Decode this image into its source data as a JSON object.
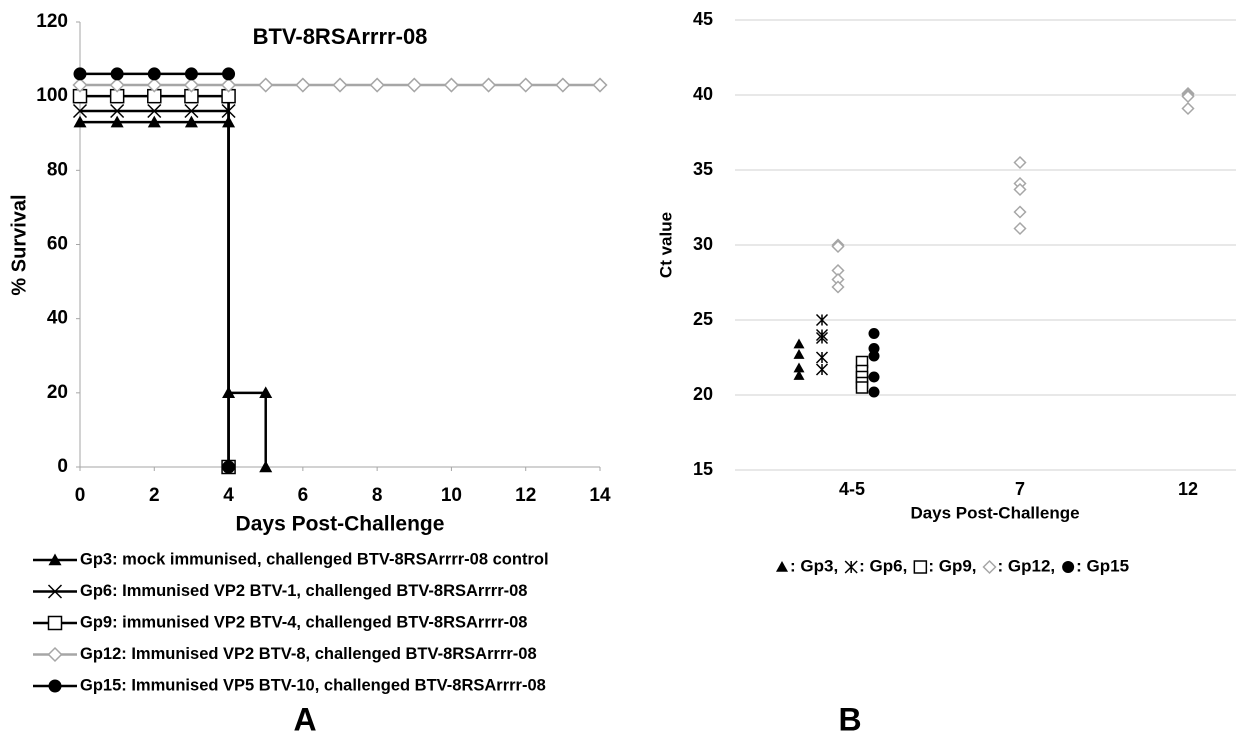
{
  "chart_data": [
    {
      "type": "line",
      "label": "A",
      "title": "BTV-8RSArrrr-08",
      "x_label": "Days Post-Challenge",
      "y_label": "% Survival",
      "xlim": [
        0,
        14
      ],
      "xticks": [
        0,
        2,
        4,
        6,
        8,
        10,
        12,
        14
      ],
      "ylim": [
        0,
        120
      ],
      "yticks": [
        0,
        20,
        40,
        60,
        80,
        100,
        120
      ],
      "grid": false,
      "series": [
        {
          "name": "Gp3: mock immunised, challenged BTV-8RSArrrr-08 control",
          "color": "#000000",
          "marker": "triangle",
          "x": [
            0,
            1,
            2,
            3,
            4,
            4,
            5,
            5
          ],
          "values": [
            93,
            93,
            93,
            93,
            93,
            20,
            20,
            0
          ]
        },
        {
          "name": "Gp6: Immunised VP2 BTV-1, challenged BTV-8RSArrrr-08",
          "color": "#000000",
          "marker": "x",
          "x": [
            0,
            1,
            2,
            3,
            4,
            4
          ],
          "values": [
            96,
            96,
            96,
            96,
            96,
            0
          ]
        },
        {
          "name": "Gp9: immunised VP2 BTV-4, challenged BTV-8RSArrrr-08",
          "color": "#000000",
          "marker": "square",
          "x": [
            0,
            1,
            2,
            3,
            4,
            4
          ],
          "values": [
            100,
            100,
            100,
            100,
            100,
            0
          ]
        },
        {
          "name": "Gp12: Immunised VP2 BTV-8, challenged BTV-8RSArrrr-08",
          "color": "#a6a6a6",
          "marker": "diamond",
          "x": [
            0,
            1,
            2,
            3,
            4,
            5,
            6,
            7,
            8,
            9,
            10,
            11,
            12,
            13,
            14
          ],
          "values": [
            103,
            103,
            103,
            103,
            103,
            103,
            103,
            103,
            103,
            103,
            103,
            103,
            103,
            103,
            103
          ]
        },
        {
          "name": "Gp15: Immunised VP5 BTV-10, challenged BTV-8RSArrrr-08",
          "color": "#000000",
          "marker": "circle",
          "x": [
            0,
            1,
            2,
            3,
            4,
            4
          ],
          "values": [
            106,
            106,
            106,
            106,
            106,
            0
          ]
        }
      ]
    },
    {
      "type": "scatter",
      "label": "B",
      "x_label": "Days Post-Challenge",
      "y_label": "Ct value",
      "categories": [
        "4-5",
        "7",
        "12"
      ],
      "ylim": [
        15,
        45
      ],
      "yticks": [
        15,
        20,
        25,
        30,
        35,
        40,
        45
      ],
      "grid": true,
      "series": [
        {
          "name": ": Gp3,",
          "color": "#000000",
          "marker": "triangle",
          "x": [
            "4-5",
            "4-5",
            "4-5",
            "4-5"
          ],
          "values": [
            23.4,
            22.7,
            21.8,
            21.3
          ]
        },
        {
          "name": ": Gp6,",
          "color": "#000000",
          "marker": "star",
          "x": [
            "4-5",
            "4-5",
            "4-5",
            "4-5",
            "4-5"
          ],
          "values": [
            25.0,
            24.0,
            23.8,
            22.5,
            21.7
          ]
        },
        {
          "name": ": Gp9,",
          "color": "#000000",
          "marker": "square",
          "x": [
            "4-5",
            "4-5",
            "4-5",
            "4-5",
            "4-5"
          ],
          "values": [
            22.2,
            21.6,
            21.2,
            20.8,
            20.5
          ]
        },
        {
          "name": ": Gp12,",
          "color": "#a6a6a6",
          "marker": "diamond",
          "x": [
            "4-5",
            "4-5",
            "4-5",
            "4-5",
            "4-5",
            "7",
            "7",
            "7",
            "7",
            "7",
            "12",
            "12",
            "12",
            "12"
          ],
          "values": [
            30.0,
            29.9,
            28.3,
            27.7,
            27.2,
            35.5,
            34.1,
            33.7,
            32.2,
            31.1,
            40.1,
            40.0,
            39.9,
            39.1
          ]
        },
        {
          "name": ": Gp15",
          "color": "#000000",
          "marker": "circle",
          "x": [
            "4-5",
            "4-5",
            "4-5",
            "4-5",
            "4-5"
          ],
          "values": [
            24.1,
            23.1,
            22.6,
            21.2,
            20.2
          ]
        }
      ]
    }
  ]
}
